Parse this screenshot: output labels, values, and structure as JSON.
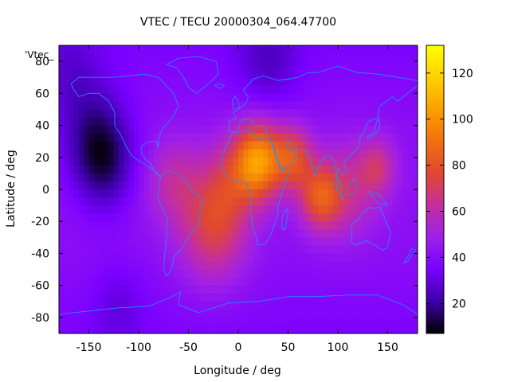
{
  "chart_data": {
    "type": "heatmap",
    "title": "VTEC / TECU 20000304_064.47700",
    "xlabel": "Longitude / deg",
    "ylabel": "Latitude / deg",
    "xlim": [
      -180,
      180
    ],
    "ylim": [
      -90,
      90
    ],
    "x_ticks": [
      -150,
      -100,
      -50,
      0,
      50,
      100,
      150
    ],
    "y_ticks": [
      -80,
      -60,
      -40,
      -20,
      0,
      20,
      40,
      60,
      80
    ],
    "colorbar": {
      "min": 7,
      "max": 132,
      "ticks": [
        20,
        40,
        60,
        80,
        100,
        120
      ]
    },
    "overlay_label": "'Vtec_",
    "colormap": [
      "#000000",
      "#3c00a8",
      "#7a00ff",
      "#9f1fe8",
      "#c42ea0",
      "#e04830",
      "#f07010",
      "#fba000",
      "#ffd000",
      "#ffff00"
    ],
    "coastline_color": "#1e90ff",
    "field_peaks": [
      {
        "name": "north-africa-peak",
        "lon": 20,
        "lat": 18,
        "value": 128
      },
      {
        "name": "arabia-peak",
        "lon": 55,
        "lat": 20,
        "value": 100
      },
      {
        "name": "indian-ocean-peak",
        "lon": 80,
        "lat": -5,
        "value": 85
      },
      {
        "name": "southeast-asia-peak",
        "lon": 140,
        "lat": 14,
        "value": 80
      },
      {
        "name": "south-atlantic-peak",
        "lon": -25,
        "lat": -25,
        "value": 82
      },
      {
        "name": "pacific-minimum",
        "lon": -135,
        "lat": 18,
        "value": 10
      },
      {
        "name": "pacific-southern-dark",
        "lon": -120,
        "lat": -70,
        "value": 22
      }
    ]
  }
}
